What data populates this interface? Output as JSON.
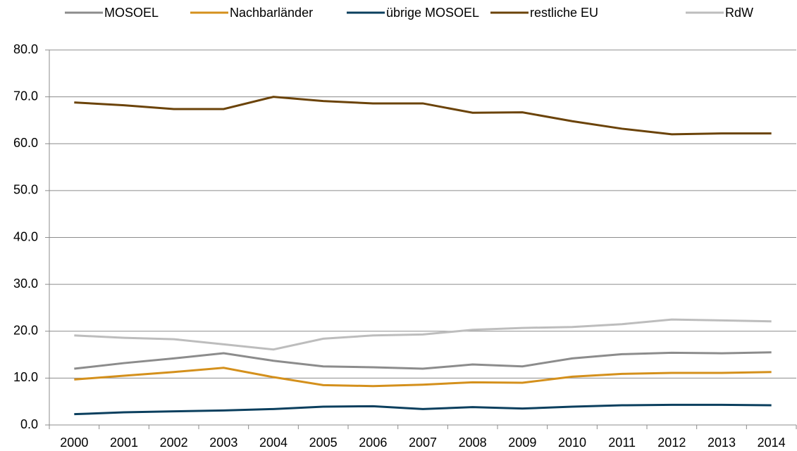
{
  "chart_data": {
    "type": "line",
    "categories": [
      "2000",
      "2001",
      "2002",
      "2003",
      "2004",
      "2005",
      "2006",
      "2007",
      "2008",
      "2009",
      "2010",
      "2011",
      "2012",
      "2013",
      "2014"
    ],
    "series": [
      {
        "name": "MOSOEL",
        "color": "#8c8c8c",
        "values": [
          12.0,
          13.2,
          14.2,
          15.3,
          13.7,
          12.5,
          12.3,
          12.0,
          12.9,
          12.5,
          14.2,
          15.1,
          15.4,
          15.3,
          15.5
        ]
      },
      {
        "name": "Nachbarländer",
        "color": "#d4901c",
        "values": [
          9.7,
          10.5,
          11.3,
          12.2,
          10.2,
          8.5,
          8.3,
          8.6,
          9.1,
          9.0,
          10.3,
          10.9,
          11.1,
          11.1,
          11.3
        ]
      },
      {
        "name": "übrige MOSOEL",
        "color": "#0b3f5e",
        "values": [
          2.3,
          2.7,
          2.9,
          3.1,
          3.4,
          3.9,
          4.0,
          3.4,
          3.8,
          3.5,
          3.9,
          4.2,
          4.3,
          4.3,
          4.2
        ]
      },
      {
        "name": "restliche EU",
        "color": "#6b4309",
        "values": [
          68.8,
          68.2,
          67.4,
          67.4,
          70.0,
          69.1,
          68.6,
          68.6,
          66.6,
          66.7,
          64.8,
          63.2,
          62.0,
          62.2,
          62.2
        ]
      },
      {
        "name": "RdW",
        "color": "#bdbdbd",
        "values": [
          19.1,
          18.6,
          18.3,
          17.2,
          16.1,
          18.4,
          19.1,
          19.3,
          20.3,
          20.7,
          20.9,
          21.5,
          22.5,
          22.3,
          22.1
        ]
      }
    ],
    "ylim": [
      0,
      80
    ],
    "yticks": [
      {
        "value": 0,
        "label": "0.0"
      },
      {
        "value": 10,
        "label": "10.0"
      },
      {
        "value": 20,
        "label": "20.0"
      },
      {
        "value": 30,
        "label": "30.0"
      },
      {
        "value": 40,
        "label": "40.0"
      },
      {
        "value": 50,
        "label": "50.0"
      },
      {
        "value": 60,
        "label": "60.0"
      },
      {
        "value": 70,
        "label": "70.0"
      },
      {
        "value": 80,
        "label": "80.0"
      }
    ],
    "grid": true,
    "legend": "top"
  }
}
